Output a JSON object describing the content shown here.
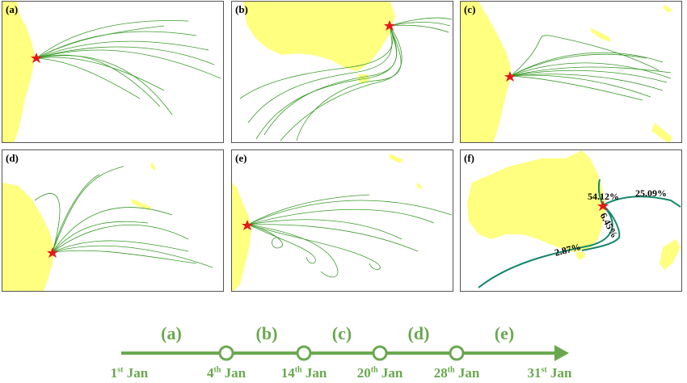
{
  "panels": [
    {
      "id": "a",
      "label": "(a)"
    },
    {
      "id": "b",
      "label": "(b)"
    },
    {
      "id": "c",
      "label": "(c)"
    },
    {
      "id": "d",
      "label": "(d)"
    },
    {
      "id": "e",
      "label": "(e)"
    },
    {
      "id": "f",
      "label": "(f)"
    }
  ],
  "cluster_percentages": {
    "east": "25.09%",
    "north": "54.12%",
    "south": "6.45%",
    "southwest": "2.87%"
  },
  "timeline": {
    "segments": [
      "(a)",
      "(b)",
      "(c)",
      "(d)",
      "(e)"
    ],
    "dates": [
      {
        "day": "1",
        "suffix": "st",
        "month": "Jan"
      },
      {
        "day": "4",
        "suffix": "th",
        "month": "Jan"
      },
      {
        "day": "14",
        "suffix": "th",
        "month": "Jan"
      },
      {
        "day": "20",
        "suffix": "th",
        "month": "Jan"
      },
      {
        "day": "28",
        "suffix": "th",
        "month": "Jan"
      },
      {
        "day": "31",
        "suffix": "st",
        "month": "Jan"
      }
    ]
  },
  "colors": {
    "land": "#ffff80",
    "trajectory": "#3a9a2a",
    "cluster": "#15866a",
    "release_site": "#e31a1c",
    "timeline": "#6aa84f"
  }
}
